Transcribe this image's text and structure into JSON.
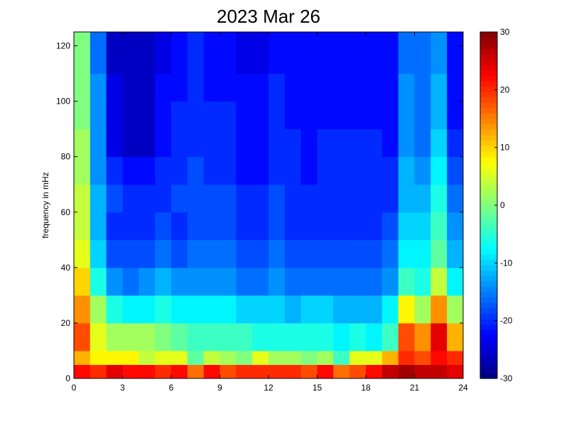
{
  "chart_data": {
    "type": "heatmap",
    "title": "2023 Mar 26",
    "xlabel": "",
    "ylabel": "frequency in mHz",
    "xlim": [
      0,
      24
    ],
    "ylim": [
      0,
      125
    ],
    "x_ticks": [
      0,
      3,
      6,
      9,
      12,
      15,
      18,
      21,
      24
    ],
    "y_ticks": [
      0,
      20,
      40,
      60,
      80,
      100,
      120
    ],
    "colorbar": {
      "colormap": "jet",
      "clim": [
        -30,
        30
      ],
      "ticks": [
        -30,
        -20,
        -10,
        0,
        10,
        20,
        30
      ]
    },
    "x_bins": 24,
    "y_bins": 13,
    "y_bin_edges": [
      0,
      5,
      10,
      20,
      30,
      40,
      50,
      60,
      70,
      80,
      90,
      100,
      110,
      125
    ],
    "values": [
      [
        22,
        20,
        24,
        22,
        22,
        20,
        22,
        16,
        22,
        18,
        20,
        20,
        20,
        20,
        18,
        22,
        16,
        18,
        22,
        26,
        28,
        26,
        26,
        24
      ],
      [
        12,
        8,
        8,
        8,
        4,
        6,
        6,
        -2,
        4,
        2,
        0,
        6,
        2,
        2,
        0,
        2,
        -4,
        6,
        6,
        12,
        20,
        18,
        22,
        20
      ],
      [
        18,
        6,
        2,
        2,
        2,
        0,
        -2,
        -4,
        -4,
        -4,
        -4,
        -6,
        -6,
        -6,
        -6,
        -6,
        -8,
        -6,
        -8,
        -4,
        18,
        14,
        24,
        12
      ],
      [
        14,
        2,
        -6,
        -8,
        -8,
        -6,
        -8,
        -8,
        -8,
        -8,
        -10,
        -10,
        -10,
        -12,
        -10,
        -10,
        -12,
        -12,
        -12,
        -8,
        8,
        2,
        14,
        2
      ],
      [
        10,
        -6,
        -14,
        -16,
        -14,
        -12,
        -14,
        -14,
        -14,
        -14,
        -16,
        -16,
        -14,
        -16,
        -16,
        -16,
        -16,
        -16,
        -16,
        -14,
        -4,
        -6,
        4,
        -8
      ],
      [
        6,
        -10,
        -18,
        -18,
        -18,
        -16,
        -18,
        -16,
        -16,
        -16,
        -18,
        -18,
        -16,
        -18,
        -18,
        -18,
        -18,
        -18,
        -18,
        -16,
        -8,
        -8,
        -2,
        -12
      ],
      [
        4,
        -12,
        -20,
        -20,
        -20,
        -18,
        -20,
        -18,
        -18,
        -18,
        -20,
        -20,
        -18,
        -20,
        -20,
        -20,
        -20,
        -20,
        -20,
        -18,
        -10,
        -10,
        -4,
        -14
      ],
      [
        4,
        -12,
        -18,
        -20,
        -20,
        -20,
        -18,
        -18,
        -18,
        -18,
        -20,
        -20,
        -18,
        -20,
        -20,
        -20,
        -20,
        -20,
        -20,
        -20,
        -12,
        -12,
        -6,
        -16
      ],
      [
        2,
        -14,
        -20,
        -22,
        -22,
        -20,
        -20,
        -18,
        -20,
        -20,
        -22,
        -22,
        -20,
        -20,
        -22,
        -20,
        -20,
        -20,
        -20,
        -20,
        -12,
        -14,
        -8,
        -18
      ],
      [
        2,
        -14,
        -24,
        -26,
        -26,
        -22,
        -20,
        -20,
        -20,
        -20,
        -22,
        -22,
        -20,
        -20,
        -22,
        -20,
        -20,
        -20,
        -20,
        -22,
        -14,
        -16,
        -10,
        -20
      ],
      [
        0,
        -14,
        -24,
        -26,
        -26,
        -22,
        -20,
        -20,
        -20,
        -20,
        -22,
        -22,
        -20,
        -22,
        -22,
        -22,
        -22,
        -22,
        -22,
        -22,
        -14,
        -16,
        -12,
        -22
      ],
      [
        0,
        -14,
        -24,
        -26,
        -26,
        -22,
        -22,
        -20,
        -22,
        -22,
        -22,
        -22,
        -20,
        -22,
        -22,
        -22,
        -22,
        -22,
        -22,
        -22,
        -14,
        -16,
        -12,
        -22
      ],
      [
        0,
        -16,
        -26,
        -26,
        -26,
        -24,
        -22,
        -20,
        -22,
        -22,
        -24,
        -24,
        -22,
        -22,
        -22,
        -22,
        -22,
        -22,
        -22,
        -22,
        -16,
        -16,
        -14,
        -22
      ]
    ]
  }
}
